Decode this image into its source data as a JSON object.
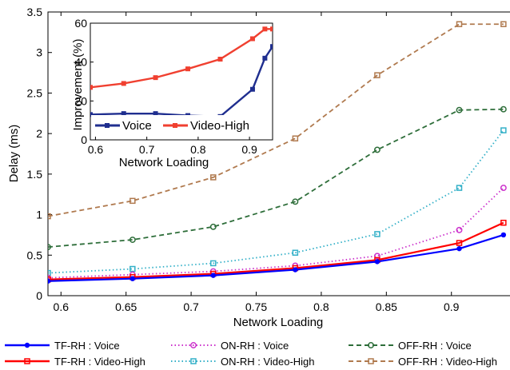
{
  "chart_data": [
    {
      "type": "line",
      "xlabel": "Network Loading",
      "ylabel": "Delay (ms)",
      "xlim": [
        0.59,
        0.945
      ],
      "ylim": [
        0,
        3.5
      ],
      "xticks": [
        "0.6",
        "0.65",
        "0.7",
        "0.75",
        "0.8",
        "0.85",
        "0.9"
      ],
      "yticks": [
        "0",
        "0.5",
        "1",
        "1.5",
        "2",
        "2.5",
        "3",
        "3.5"
      ],
      "x": [
        0.59,
        0.655,
        0.717,
        0.78,
        0.843,
        0.906,
        0.94
      ],
      "grid": false,
      "legend_position": "bottom",
      "series": [
        {
          "name": "TF-RH   : Voice",
          "color": "#0000ff",
          "style": "solid",
          "marker": "dot",
          "values": [
            0.18,
            0.21,
            0.25,
            0.32,
            0.42,
            0.58,
            0.75
          ]
        },
        {
          "name": "TF-RH   : Video-High",
          "color": "#ff0000",
          "style": "solid",
          "marker": "square",
          "values": [
            0.2,
            0.23,
            0.27,
            0.34,
            0.44,
            0.65,
            0.9
          ]
        },
        {
          "name": "ON-RH   : Voice",
          "color": "#cc33cc",
          "style": "dotted",
          "marker": "circle",
          "values": [
            0.22,
            0.26,
            0.3,
            0.37,
            0.49,
            0.81,
            1.33
          ]
        },
        {
          "name": "ON-RH   : Video-High",
          "color": "#33b0c8",
          "style": "dotted",
          "marker": "square",
          "values": [
            0.28,
            0.33,
            0.4,
            0.53,
            0.76,
            1.33,
            2.04
          ]
        },
        {
          "name": "OFF-RH : Voice",
          "color": "#2e6e3a",
          "style": "dashed",
          "marker": "circle",
          "values": [
            0.6,
            0.69,
            0.85,
            1.16,
            1.8,
            2.29,
            2.3
          ]
        },
        {
          "name": "OFF-RH : Video-High",
          "color": "#b07a4f",
          "style": "dashed",
          "marker": "square",
          "values": [
            0.98,
            1.17,
            1.46,
            1.94,
            2.72,
            3.35,
            3.35
          ]
        }
      ]
    },
    {
      "type": "line",
      "xlabel": "Network Loading",
      "ylabel": "Improvement (%)",
      "xlim": [
        0.59,
        0.945
      ],
      "ylim": [
        0,
        60
      ],
      "xticks": [
        "0.6",
        "0.7",
        "0.8",
        "0.9"
      ],
      "yticks": [
        "0",
        "20",
        "40",
        "60"
      ],
      "x": [
        0.59,
        0.655,
        0.717,
        0.78,
        0.843,
        0.906,
        0.93,
        0.945
      ],
      "grid": false,
      "legend_position": "bottom",
      "series": [
        {
          "name": "Voice",
          "color": "#1f2e8f",
          "values": [
            13,
            13.5,
            13.5,
            12.5,
            12,
            26,
            42,
            48
          ]
        },
        {
          "name": "Video-High",
          "color": "#f04030",
          "values": [
            27,
            29,
            32,
            36.5,
            41.5,
            52,
            57,
            57
          ]
        }
      ]
    }
  ]
}
